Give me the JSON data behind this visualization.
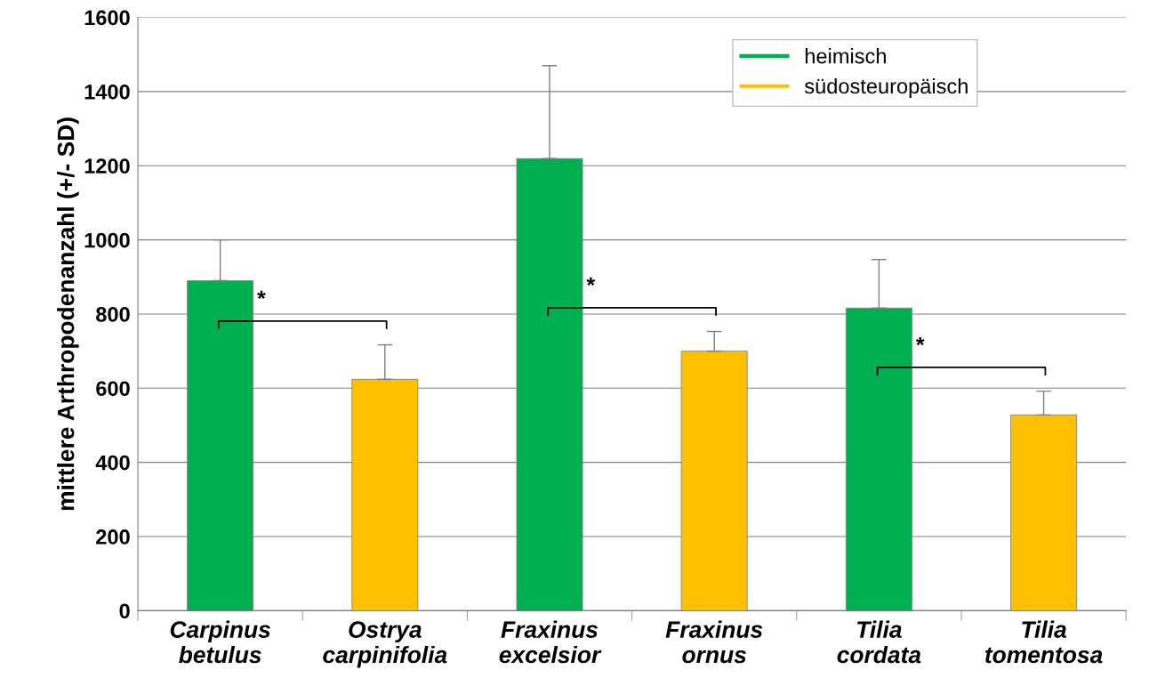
{
  "chart_data": {
    "type": "bar",
    "ylabel": "mittlere Arthropodenanzahl (+/- SD)",
    "categories": [
      "Carpinus\nbetulus",
      "Ostrya\ncarpinifolia",
      "Fraxinus\nexcelsior",
      "Fraxinus\nornus",
      "Tilia\ncordata",
      "Tilia\ntomentosa"
    ],
    "series": [
      {
        "name": "heimisch",
        "color": "#00b050",
        "values": [
          890,
          null,
          1219,
          null,
          816,
          null
        ],
        "errors": [
          [
            890,
            1000
          ],
          null,
          [
            1219,
            1470
          ],
          null,
          [
            816,
            947
          ],
          null
        ]
      },
      {
        "name": "südosteuropäisch",
        "color": "#ffc000",
        "values": [
          null,
          624,
          null,
          700,
          null,
          528
        ],
        "errors": [
          null,
          [
            624,
            717
          ],
          null,
          [
            700,
            753
          ],
          null,
          [
            528,
            592
          ]
        ]
      }
    ],
    "ylim": [
      0,
      1600
    ],
    "yticks": [
      0,
      200,
      400,
      600,
      800,
      1000,
      1200,
      1400,
      1600
    ],
    "grid": "y",
    "legend": "top right",
    "annotations": [
      "*",
      "*",
      "*"
    ]
  }
}
